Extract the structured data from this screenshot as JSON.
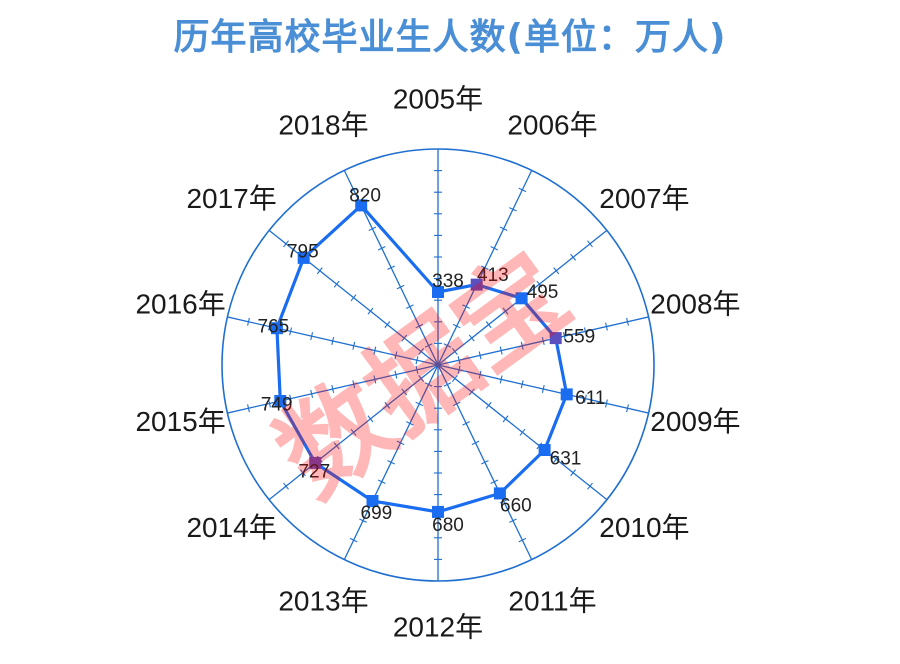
{
  "title": "历年高校毕业生人数(单位：万人)",
  "watermark": "数据宝",
  "colors": {
    "title": "#4a8fd6",
    "grid": "#1f6fd1",
    "series": "#1a6df0",
    "marker_alt": "#5b4fbf"
  },
  "chart_data": {
    "type": "radar",
    "title": "历年高校毕业生人数(单位：万人)",
    "categories": [
      "2005年",
      "2006年",
      "2007年",
      "2008年",
      "2009年",
      "2010年",
      "2011年",
      "2012年",
      "2013年",
      "2014年",
      "2015年",
      "2016年",
      "2017年",
      "2018年"
    ],
    "series": [
      {
        "values": [
          338,
          413,
          495,
          559,
          611,
          631,
          660,
          680,
          699,
          727,
          749,
          765,
          795,
          820
        ]
      }
    ],
    "rlim": [
      0,
      1000
    ],
    "grid": true
  }
}
